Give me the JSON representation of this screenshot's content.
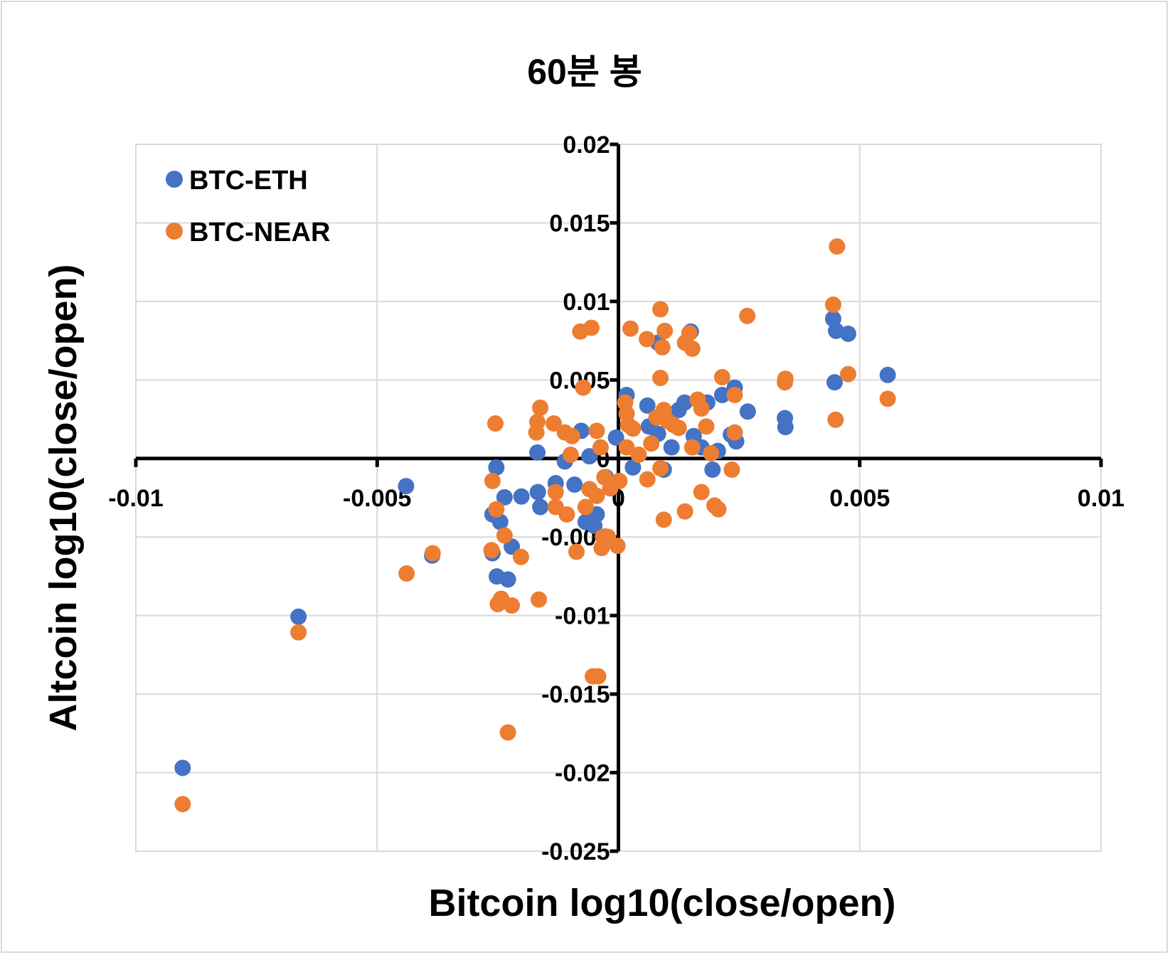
{
  "chart_data": {
    "type": "scatter",
    "title": "60분 봉",
    "xlabel": "Bitcoin log10(close/open)",
    "ylabel": "Altcoin log10(close/open)",
    "xlim": [
      -0.01,
      0.01
    ],
    "ylim": [
      -0.025,
      0.02
    ],
    "xticks": [
      -0.01,
      -0.005,
      0,
      0.005,
      0.01
    ],
    "xtick_labels": [
      "-0.01",
      "-0.005",
      "0",
      "0.005",
      "0.01"
    ],
    "yticks": [
      0.02,
      0.015,
      0.01,
      0.005,
      0,
      -0.005,
      -0.01,
      -0.015,
      -0.02,
      -0.025
    ],
    "ytick_labels": [
      "0.02",
      "0.015",
      "0.01",
      "0.005",
      "0",
      "-0.005",
      "-0.01",
      "-0.015",
      "-0.02",
      "-0.025"
    ],
    "grid": true,
    "legend_placement": "top-left",
    "series": [
      {
        "name": "BTC-ETH",
        "color": "#4472C4",
        "points": [
          [
            -0.00903,
            -0.0197
          ],
          [
            -0.00663,
            -0.01007
          ],
          [
            -0.0044,
            -0.00176
          ],
          [
            -0.00386,
            -0.00618
          ],
          [
            -0.00253,
            -0.00057
          ],
          [
            -0.00261,
            -0.00356
          ],
          [
            -0.00245,
            -0.00404
          ],
          [
            -0.00236,
            -0.00247
          ],
          [
            -0.00261,
            -0.00603
          ],
          [
            -0.00252,
            -0.00751
          ],
          [
            -0.00229,
            -0.0077
          ],
          [
            -0.00221,
            -0.00561
          ],
          [
            -0.00201,
            -0.00242
          ],
          [
            -0.00168,
            0.00038
          ],
          [
            -0.00167,
            -0.00214
          ],
          [
            -0.00162,
            -0.00309
          ],
          [
            -0.0013,
            -0.00157
          ],
          [
            -0.00111,
            -0.00019
          ],
          [
            -0.00091,
            -0.00166
          ],
          [
            -0.00077,
            0.00176
          ],
          [
            -0.0006,
            0.00014
          ],
          [
            -0.00068,
            -0.00404
          ],
          [
            -0.00045,
            -0.00356
          ],
          [
            -0.0005,
            -0.00428
          ],
          [
            -0.00026,
            -0.00119
          ],
          [
            -5e-05,
            0.00133
          ],
          [
            0.00017,
            0.00404
          ],
          [
            0.0003,
            -0.00057
          ],
          [
            0.0006,
            0.00337
          ],
          [
            0.00063,
            0.00204
          ],
          [
            0.00082,
            0.00157
          ],
          [
            0.00082,
            0.00737
          ],
          [
            0.00094,
            -0.00071
          ],
          [
            0.0011,
            0.00071
          ],
          [
            0.00125,
            0.00309
          ],
          [
            0.00137,
            0.00356
          ],
          [
            0.0015,
            0.00808
          ],
          [
            0.00156,
            0.00143
          ],
          [
            0.00172,
            0.00071
          ],
          [
            0.00184,
            0.00356
          ],
          [
            0.00195,
            -0.00071
          ],
          [
            0.00206,
            0.00048
          ],
          [
            0.00215,
            0.00404
          ],
          [
            0.00233,
            0.00152
          ],
          [
            0.00241,
            0.00451
          ],
          [
            0.00244,
            0.00109
          ],
          [
            0.00268,
            0.00299
          ],
          [
            0.00345,
            0.00257
          ],
          [
            0.00346,
            0.002
          ],
          [
            0.00445,
            0.00889
          ],
          [
            0.00451,
            0.00813
          ],
          [
            0.00476,
            0.00794
          ],
          [
            0.00448,
            0.00485
          ],
          [
            0.00558,
            0.00532
          ]
        ]
      },
      {
        "name": "BTC-NEAR",
        "color": "#ED7D31",
        "points": [
          [
            -0.00903,
            -0.022
          ],
          [
            -0.00663,
            -0.01107
          ],
          [
            -0.00439,
            -0.00732
          ],
          [
            -0.00385,
            -0.00603
          ],
          [
            -0.00255,
            0.00223
          ],
          [
            -0.00261,
            -0.00143
          ],
          [
            -0.00253,
            -0.00323
          ],
          [
            -0.00263,
            -0.00584
          ],
          [
            -0.00236,
            -0.0049
          ],
          [
            -0.00202,
            -0.00627
          ],
          [
            -0.0025,
            -0.00927
          ],
          [
            -0.00243,
            -0.00893
          ],
          [
            -0.00221,
            -0.00936
          ],
          [
            -0.00229,
            -0.01744
          ],
          [
            -0.00165,
            -0.00898
          ],
          [
            -0.00162,
            0.00323
          ],
          [
            -0.00168,
            0.00233
          ],
          [
            -0.0017,
            0.00166
          ],
          [
            -0.00134,
            0.00223
          ],
          [
            -0.0013,
            -0.00214
          ],
          [
            -0.0013,
            -0.00309
          ],
          [
            -0.00111,
            0.00166
          ],
          [
            -0.00107,
            -0.00356
          ],
          [
            -0.00099,
            0.00024
          ],
          [
            -0.00096,
            0.00143
          ],
          [
            -0.00087,
            -0.00594
          ],
          [
            -0.00079,
            0.00808
          ],
          [
            -0.00073,
            0.00451
          ],
          [
            -0.00056,
            0.00832
          ],
          [
            -0.00045,
            0.00176
          ],
          [
            -0.00068,
            -0.00309
          ],
          [
            -0.0006,
            -0.00195
          ],
          [
            -0.00045,
            -0.00238
          ],
          [
            -0.00037,
            0.00071
          ],
          [
            -0.00032,
            -0.00499
          ],
          [
            -0.00035,
            -0.0057
          ],
          [
            -0.00029,
            -0.00119
          ],
          [
            -0.00022,
            -0.00499
          ],
          [
            -0.00017,
            -0.0019
          ],
          [
            -2e-05,
            -0.00556
          ],
          [
            2e-05,
            -0.00143
          ],
          [
            -0.00053,
            -0.01387
          ],
          [
            -0.00042,
            -0.01387
          ],
          [
            0.00014,
            0.00356
          ],
          [
            0.00017,
            0.00285
          ],
          [
            0.0002,
            0.00214
          ],
          [
            0.00025,
            0.00827
          ],
          [
            0.00017,
            0.00071
          ],
          [
            0.0003,
            0.0019
          ],
          [
            0.00042,
            0.00024
          ],
          [
            0.00059,
            0.0076
          ],
          [
            0.0006,
            -0.00133
          ],
          [
            0.00068,
            0.00095
          ],
          [
            0.00087,
            0.0095
          ],
          [
            0.00087,
            0.00513
          ],
          [
            0.00091,
            0.00708
          ],
          [
            0.00096,
            0.00813
          ],
          [
            0.00094,
            -0.0039
          ],
          [
            0.00079,
            0.00261
          ],
          [
            0.00087,
            -0.00062
          ],
          [
            0.00094,
            0.00309
          ],
          [
            0.00102,
            0.00238
          ],
          [
            0.00114,
            0.00214
          ],
          [
            0.00125,
            0.00195
          ],
          [
            0.00138,
            -0.00337
          ],
          [
            0.00138,
            0.00737
          ],
          [
            0.00147,
            0.00798
          ],
          [
            0.00153,
            0.00699
          ],
          [
            0.00153,
            0.00071
          ],
          [
            0.00164,
            0.00375
          ],
          [
            0.00172,
            0.00318
          ],
          [
            0.00172,
            -0.00214
          ],
          [
            0.00182,
            0.00204
          ],
          [
            0.00192,
            0.00033
          ],
          [
            0.00199,
            -0.00299
          ],
          [
            0.00207,
            -0.00323
          ],
          [
            0.00215,
            0.00518
          ],
          [
            0.00235,
            -0.00071
          ],
          [
            0.00241,
            0.00404
          ],
          [
            0.00241,
            0.00166
          ],
          [
            0.00267,
            0.00908
          ],
          [
            0.00345,
            0.00485
          ],
          [
            0.00346,
            0.00508
          ],
          [
            0.0045,
            0.00247
          ],
          [
            0.00445,
            0.00979
          ],
          [
            0.00453,
            0.0135
          ],
          [
            0.00476,
            0.00537
          ],
          [
            0.00558,
            0.0038
          ]
        ]
      }
    ]
  }
}
